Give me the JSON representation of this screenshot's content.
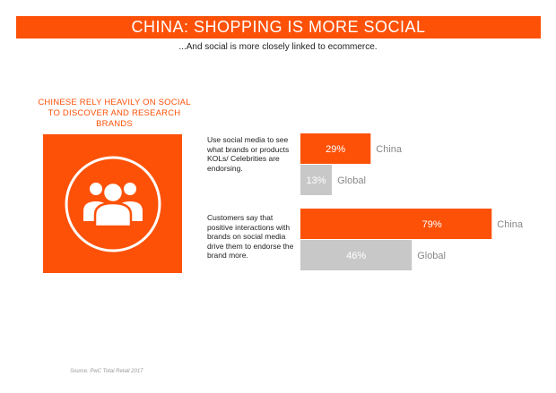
{
  "header": {
    "title": "CHINA: SHOPPING IS MORE SOCIAL",
    "subtitle": "...And social is more closely linked to ecommerce."
  },
  "left_panel": {
    "heading": "CHINESE RELY HEAVILY ON SOCIAL TO DISCOVER AND RESEARCH BRANDS",
    "icon": "people-group-icon"
  },
  "colors": {
    "china": "#fd5108",
    "global": "#c8c8c8",
    "accent": "#fd5108"
  },
  "footer": {
    "source": "Source: PwC Total Retail 2017"
  },
  "chart_data": {
    "type": "bar",
    "orientation": "horizontal",
    "xlim": [
      0,
      100
    ],
    "groups": [
      {
        "question": "Use social media to see what brands or products KOLs/ Celebrities are endorsing.",
        "bars": [
          {
            "name": "China",
            "value": 29,
            "label": "29%"
          },
          {
            "name": "Global",
            "value": 13,
            "label": "13%"
          }
        ]
      },
      {
        "question": "Customers say that positive interactions with brands on social media drive them to endorse the brand more.",
        "bars": [
          {
            "name": "China",
            "value": 79,
            "label": "79%"
          },
          {
            "name": "Global",
            "value": 46,
            "label": "46%"
          }
        ]
      }
    ]
  }
}
